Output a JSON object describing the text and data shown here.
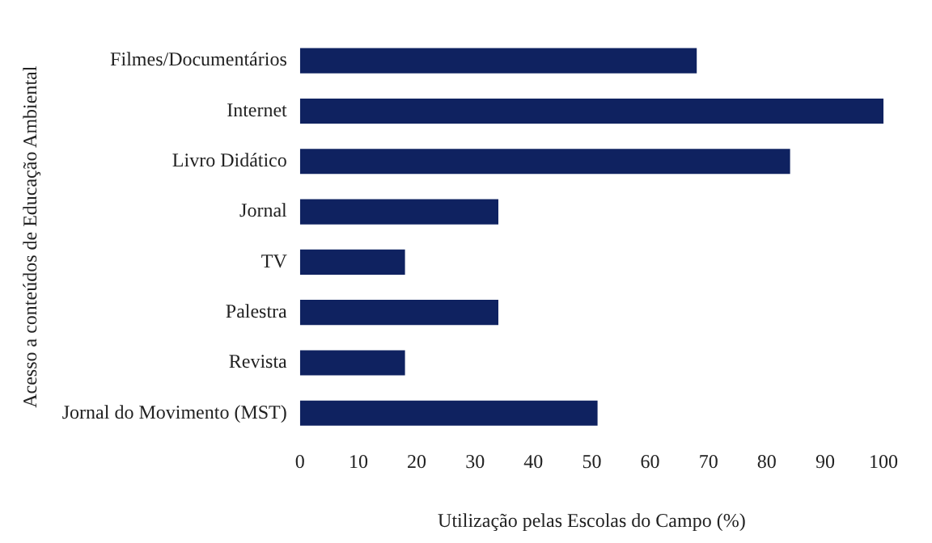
{
  "chart_data": {
    "type": "bar",
    "orientation": "horizontal",
    "xlabel": "Utilização pelas Escolas do Campo (%)",
    "ylabel": "Acesso a conteúdos de Educação Ambiental",
    "categories": [
      "Filmes/Documentários",
      "Internet",
      "Livro Didático",
      "Jornal",
      "TV",
      "Palestra",
      "Revista",
      "Jornal do Movimento (MST)"
    ],
    "values": [
      68,
      100,
      84,
      34,
      18,
      34,
      18,
      51
    ],
    "color": "#0f2260",
    "xlim": [
      0,
      100
    ],
    "xticks": [
      0,
      10,
      20,
      30,
      40,
      50,
      60,
      70,
      80,
      90,
      100
    ],
    "grid": false,
    "legend": false
  }
}
